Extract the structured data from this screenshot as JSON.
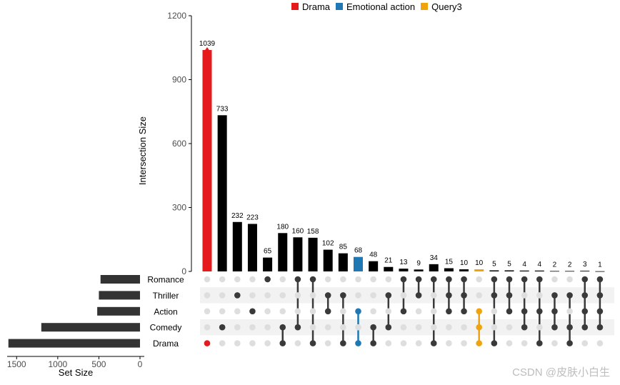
{
  "chart_data": {
    "type": "upset",
    "ylabel": "Intersection Size",
    "xlabel_sets": "Set Size",
    "ylim": [
      0,
      1200
    ],
    "yticks": [
      0,
      300,
      600,
      900,
      1200
    ],
    "set_size_ticks": [
      1500,
      1000,
      500,
      0
    ],
    "sets": [
      "Romance",
      "Thriller",
      "Action",
      "Comedy",
      "Drama"
    ],
    "set_sizes": [
      480,
      500,
      520,
      1200,
      1600
    ],
    "legend": [
      {
        "name": "Drama",
        "color": "#e41a1c"
      },
      {
        "name": "Emotional action",
        "color": "#1f77b4"
      },
      {
        "name": "Query3",
        "color": "#f0a30a"
      }
    ],
    "intersections": [
      {
        "sets": [
          "Drama"
        ],
        "value": 1039,
        "highlight": "Drama"
      },
      {
        "sets": [
          "Comedy"
        ],
        "value": 733
      },
      {
        "sets": [
          "Thriller"
        ],
        "value": 232
      },
      {
        "sets": [
          "Action"
        ],
        "value": 223
      },
      {
        "sets": [
          "Romance"
        ],
        "value": 65
      },
      {
        "sets": [
          "Comedy",
          "Drama"
        ],
        "value": 180
      },
      {
        "sets": [
          "Romance",
          "Comedy"
        ],
        "value": 160
      },
      {
        "sets": [
          "Romance",
          "Drama"
        ],
        "value": 158
      },
      {
        "sets": [
          "Thriller",
          "Action"
        ],
        "value": 102
      },
      {
        "sets": [
          "Thriller",
          "Drama"
        ],
        "value": 85
      },
      {
        "sets": [
          "Action",
          "Drama"
        ],
        "value": 68,
        "highlight": "Emotional action"
      },
      {
        "sets": [
          "Comedy",
          "Drama"
        ],
        "value": 48
      },
      {
        "sets": [
          "Thriller",
          "Comedy"
        ],
        "value": 21
      },
      {
        "sets": [
          "Romance",
          "Action"
        ],
        "value": 13
      },
      {
        "sets": [
          "Romance",
          "Thriller"
        ],
        "value": 9
      },
      {
        "sets": [
          "Romance",
          "Drama"
        ],
        "value": 34
      },
      {
        "sets": [
          "Romance",
          "Thriller",
          "Action"
        ],
        "value": 15
      },
      {
        "sets": [
          "Romance",
          "Thriller",
          "Action"
        ],
        "value": 10
      },
      {
        "sets": [
          "Action",
          "Comedy",
          "Drama"
        ],
        "value": 10,
        "highlight": "Query3"
      },
      {
        "sets": [
          "Romance",
          "Thriller",
          "Drama"
        ],
        "value": 5
      },
      {
        "sets": [
          "Romance",
          "Thriller",
          "Action"
        ],
        "value": 5
      },
      {
        "sets": [
          "Romance",
          "Action",
          "Comedy"
        ],
        "value": 4
      },
      {
        "sets": [
          "Romance",
          "Action",
          "Drama"
        ],
        "value": 4
      },
      {
        "sets": [
          "Thriller",
          "Action",
          "Comedy"
        ],
        "value": 2
      },
      {
        "sets": [
          "Thriller",
          "Comedy",
          "Drama"
        ],
        "value": 2
      },
      {
        "sets": [
          "Romance",
          "Thriller",
          "Action",
          "Comedy"
        ],
        "value": 3
      },
      {
        "sets": [
          "Romance",
          "Thriller",
          "Action",
          "Comedy"
        ],
        "value": 1
      }
    ]
  },
  "watermark": "CSDN @皮肤小白生"
}
